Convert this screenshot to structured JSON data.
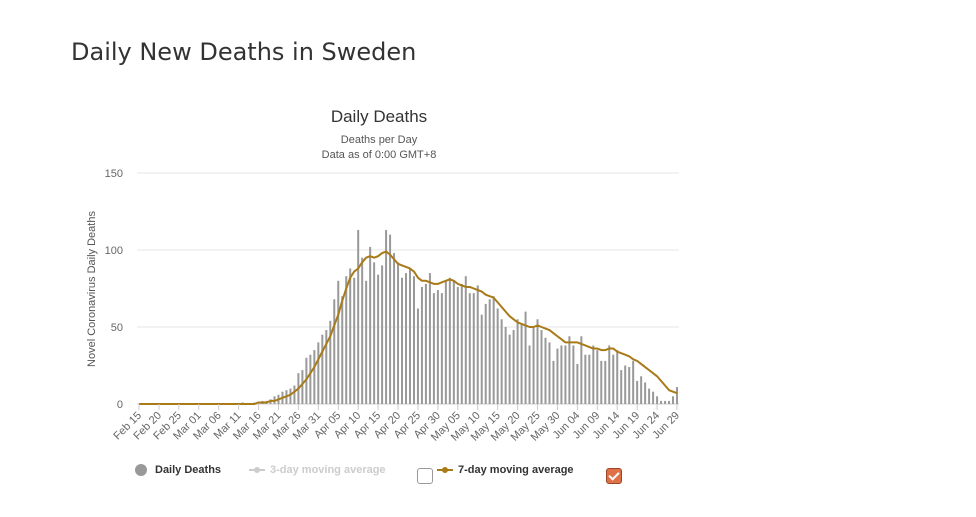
{
  "page": {
    "title": "Daily New Deaths in Sweden"
  },
  "chart_data": {
    "type": "bar",
    "title": "Daily Deaths",
    "subtitle": [
      "Deaths per Day",
      "Data as of 0:00 GMT+8"
    ],
    "ylabel": "Novel Coronavirus Daily Deaths",
    "xlabel": "",
    "ylim": [
      0,
      150
    ],
    "yticks": [
      0,
      50,
      100,
      150
    ],
    "grid": true,
    "start_date": "2020-02-15",
    "xtick_labels": [
      "Feb 15",
      "Feb 20",
      "Feb 25",
      "Mar 01",
      "Mar 06",
      "Mar 11",
      "Mar 16",
      "Mar 21",
      "Mar 26",
      "Mar 31",
      "Apr 05",
      "Apr 10",
      "Apr 15",
      "Apr 20",
      "Apr 25",
      "Apr 30",
      "May 05",
      "May 10",
      "May 15",
      "May 20",
      "May 25",
      "May 30",
      "Jun 04",
      "Jun 09",
      "Jun 14",
      "Jun 19",
      "Jun 24",
      "Jun 29"
    ],
    "x": [
      "Feb 15",
      "Feb 16",
      "Feb 17",
      "Feb 18",
      "Feb 19",
      "Feb 20",
      "Feb 21",
      "Feb 22",
      "Feb 23",
      "Feb 24",
      "Feb 25",
      "Feb 26",
      "Feb 27",
      "Feb 28",
      "Feb 29",
      "Mar 01",
      "Mar 02",
      "Mar 03",
      "Mar 04",
      "Mar 05",
      "Mar 06",
      "Mar 07",
      "Mar 08",
      "Mar 09",
      "Mar 10",
      "Mar 11",
      "Mar 12",
      "Mar 13",
      "Mar 14",
      "Mar 15",
      "Mar 16",
      "Mar 17",
      "Mar 18",
      "Mar 19",
      "Mar 20",
      "Mar 21",
      "Mar 22",
      "Mar 23",
      "Mar 24",
      "Mar 25",
      "Mar 26",
      "Mar 27",
      "Mar 28",
      "Mar 29",
      "Mar 30",
      "Mar 31",
      "Apr 01",
      "Apr 02",
      "Apr 03",
      "Apr 04",
      "Apr 05",
      "Apr 06",
      "Apr 07",
      "Apr 08",
      "Apr 09",
      "Apr 10",
      "Apr 11",
      "Apr 12",
      "Apr 13",
      "Apr 14",
      "Apr 15",
      "Apr 16",
      "Apr 17",
      "Apr 18",
      "Apr 19",
      "Apr 20",
      "Apr 21",
      "Apr 22",
      "Apr 23",
      "Apr 24",
      "Apr 25",
      "Apr 26",
      "Apr 27",
      "Apr 28",
      "Apr 29",
      "Apr 30",
      "May 01",
      "May 02",
      "May 03",
      "May 04",
      "May 05",
      "May 06",
      "May 07",
      "May 08",
      "May 09",
      "May 10",
      "May 11",
      "May 12",
      "May 13",
      "May 14",
      "May 15",
      "May 16",
      "May 17",
      "May 18",
      "May 19",
      "May 20",
      "May 21",
      "May 22",
      "May 23",
      "May 24",
      "May 25",
      "May 26",
      "May 27",
      "May 28",
      "May 29",
      "May 30",
      "May 31",
      "Jun 01",
      "Jun 02",
      "Jun 03",
      "Jun 04",
      "Jun 05",
      "Jun 06",
      "Jun 07",
      "Jun 08",
      "Jun 09",
      "Jun 10",
      "Jun 11",
      "Jun 12",
      "Jun 13",
      "Jun 14",
      "Jun 15",
      "Jun 16",
      "Jun 17",
      "Jun 18",
      "Jun 19",
      "Jun 20",
      "Jun 21",
      "Jun 22",
      "Jun 23",
      "Jun 24",
      "Jun 25",
      "Jun 26",
      "Jun 27",
      "Jun 28",
      "Jun 29"
    ],
    "series": [
      {
        "name": "Daily Deaths",
        "color": "#999999",
        "values": [
          0,
          0,
          0,
          0,
          0,
          0,
          0,
          0,
          0,
          0,
          0,
          0,
          0,
          0,
          0,
          0,
          0,
          0,
          0,
          0,
          0,
          0,
          0,
          0,
          0,
          0,
          1,
          0,
          0,
          1,
          0,
          2,
          2,
          3,
          5,
          6,
          8,
          9,
          10,
          12,
          20,
          22,
          30,
          32,
          35,
          40,
          45,
          48,
          54,
          68,
          80,
          70,
          83,
          88,
          82,
          113,
          95,
          80,
          102,
          92,
          84,
          90,
          113,
          110,
          98,
          92,
          82,
          85,
          88,
          83,
          62,
          76,
          78,
          85,
          72,
          74,
          72,
          80,
          82,
          80,
          76,
          78,
          83,
          72,
          72,
          77,
          58,
          65,
          68,
          70,
          62,
          55,
          50,
          45,
          48,
          55,
          52,
          60,
          38,
          50,
          55,
          48,
          43,
          40,
          28,
          36,
          38,
          38,
          44,
          38,
          26,
          44,
          32,
          32,
          38,
          35,
          28,
          28,
          38,
          32,
          35,
          22,
          25,
          24,
          28,
          15,
          18,
          14,
          10,
          8,
          5,
          2,
          2,
          2,
          5,
          11
        ]
      },
      {
        "name": "3-day moving average",
        "color": "#cccccc",
        "enabled": false
      },
      {
        "name": "7-day moving average",
        "color": "#a87a18",
        "values": [
          0,
          0,
          0,
          0,
          0,
          0,
          0,
          0,
          0,
          0,
          0,
          0,
          0,
          0,
          0,
          0,
          0,
          0,
          0,
          0,
          0,
          0,
          0,
          0,
          0,
          0,
          0,
          0,
          0,
          0,
          1,
          1,
          1,
          2,
          2,
          3,
          4,
          5,
          6,
          8,
          10,
          13,
          16,
          20,
          24,
          29,
          34,
          39,
          44,
          51,
          58,
          67,
          75,
          82,
          86,
          88,
          92,
          95,
          96,
          95,
          96,
          98,
          99,
          97,
          94,
          91,
          90,
          89,
          88,
          86,
          82,
          80,
          80,
          79,
          78,
          78,
          79,
          80,
          81,
          80,
          78,
          77,
          76,
          76,
          75,
          74,
          73,
          71,
          70,
          69,
          66,
          63,
          60,
          57,
          55,
          53,
          52,
          51,
          50,
          50,
          51,
          50,
          49,
          48,
          46,
          44,
          42,
          40,
          40,
          40,
          40,
          39,
          38,
          37,
          36,
          36,
          35,
          35,
          36,
          36,
          34,
          33,
          32,
          31,
          29,
          28,
          26,
          24,
          22,
          20,
          18,
          15,
          12,
          9,
          8,
          7
        ]
      }
    ],
    "legend": {
      "placement": "bottom"
    }
  },
  "legend_labels": {
    "daily": "Daily Deaths",
    "ma3": "3-day moving average",
    "ma7": "7-day moving average"
  },
  "toggles": {
    "ma3_checked": false,
    "ma7_checked": true
  }
}
